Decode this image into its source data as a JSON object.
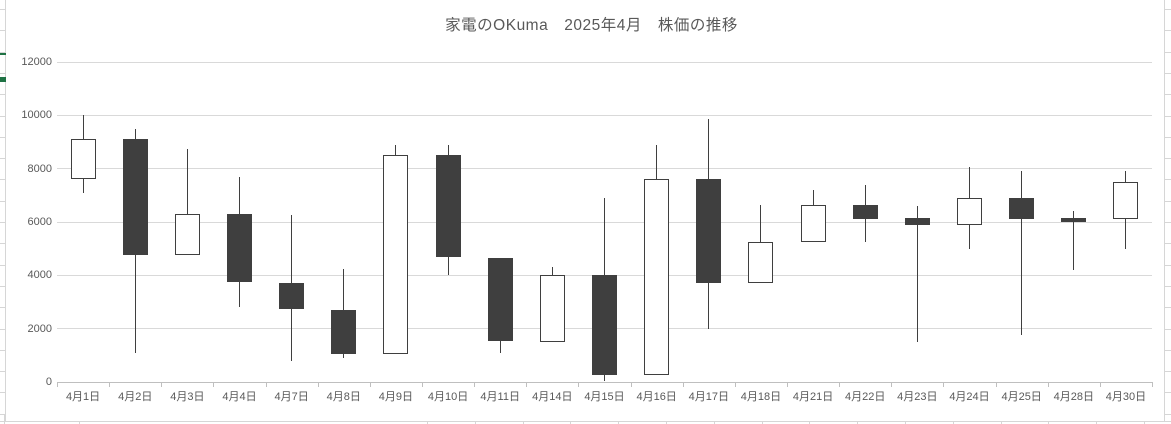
{
  "title": "家電のOKuma　2025年4月　株価の推移",
  "colors": {
    "text": "#595959",
    "gridline": "#d9d9d9",
    "axis_line": "#bfbfbf",
    "candle_up_fill": "#ffffff",
    "candle_down_fill": "#3f3f3f",
    "candle_border": "#3f3f3f",
    "wick": "#3f3f3f",
    "worksheet_gridline": "#d6d6d6",
    "worksheet_accent_green": "#1f7244"
  },
  "y_axis_labels": [
    "0",
    "2000",
    "4000",
    "6000",
    "8000",
    "10000",
    "12000"
  ],
  "chart_data": {
    "type": "candlestick",
    "title": "家電のOKuma　2025年4月　株価の推移",
    "xlabel": "",
    "ylabel": "",
    "ylim": [
      0,
      12000
    ],
    "y_ticks": [
      0,
      2000,
      4000,
      6000,
      8000,
      10000,
      12000
    ],
    "grid": true,
    "legend_position": "none",
    "categories": [
      "4月1日",
      "4月2日",
      "4月3日",
      "4月4日",
      "4月7日",
      "4月8日",
      "4月9日",
      "4月10日",
      "4月11日",
      "4月14日",
      "4月15日",
      "4月16日",
      "4月17日",
      "4月18日",
      "4月21日",
      "4月22日",
      "4月23日",
      "4月24日",
      "4月25日",
      "4月28日",
      "4月30日"
    ],
    "candles": [
      {
        "date": "4月1日",
        "open": 7600,
        "high": 10000,
        "low": 7100,
        "close": 9100
      },
      {
        "date": "4月2日",
        "open": 9100,
        "high": 9500,
        "low": 1100,
        "close": 4750
      },
      {
        "date": "4月3日",
        "open": 4750,
        "high": 8750,
        "low": 4750,
        "close": 6300
      },
      {
        "date": "4月4日",
        "open": 6300,
        "high": 7700,
        "low": 2800,
        "close": 3750
      },
      {
        "date": "4月7日",
        "open": 3700,
        "high": 6250,
        "low": 800,
        "close": 2750
      },
      {
        "date": "4月8日",
        "open": 2700,
        "high": 4250,
        "low": 900,
        "close": 1050
      },
      {
        "date": "4月9日",
        "open": 1050,
        "high": 8900,
        "low": 1050,
        "close": 8500
      },
      {
        "date": "4月10日",
        "open": 8500,
        "high": 8900,
        "low": 4000,
        "close": 4700
      },
      {
        "date": "4月11日",
        "open": 4650,
        "high": 4650,
        "low": 1100,
        "close": 1550
      },
      {
        "date": "4月14日",
        "open": 1500,
        "high": 4300,
        "low": 1500,
        "close": 4000
      },
      {
        "date": "4月15日",
        "open": 4000,
        "high": 6900,
        "low": 50,
        "close": 250
      },
      {
        "date": "4月16日",
        "open": 250,
        "high": 8900,
        "low": 250,
        "close": 7600
      },
      {
        "date": "4月17日",
        "open": 7600,
        "high": 9850,
        "low": 2000,
        "close": 3700
      },
      {
        "date": "4月18日",
        "open": 3700,
        "high": 6650,
        "low": 3700,
        "close": 5250
      },
      {
        "date": "4月21日",
        "open": 5250,
        "high": 7200,
        "low": 5250,
        "close": 6650
      },
      {
        "date": "4月22日",
        "open": 6650,
        "high": 7400,
        "low": 5250,
        "close": 6100
      },
      {
        "date": "4月23日",
        "open": 6150,
        "high": 6600,
        "low": 1500,
        "close": 5900
      },
      {
        "date": "4月24日",
        "open": 5900,
        "high": 8050,
        "low": 5000,
        "close": 6900
      },
      {
        "date": "4月25日",
        "open": 6900,
        "high": 7900,
        "low": 1750,
        "close": 6100
      },
      {
        "date": "4月28日",
        "open": 6150,
        "high": 6400,
        "low": 4200,
        "close": 6000
      },
      {
        "date": "4月30日",
        "open": 6100,
        "high": 7900,
        "low": 5000,
        "close": 7500
      }
    ]
  }
}
